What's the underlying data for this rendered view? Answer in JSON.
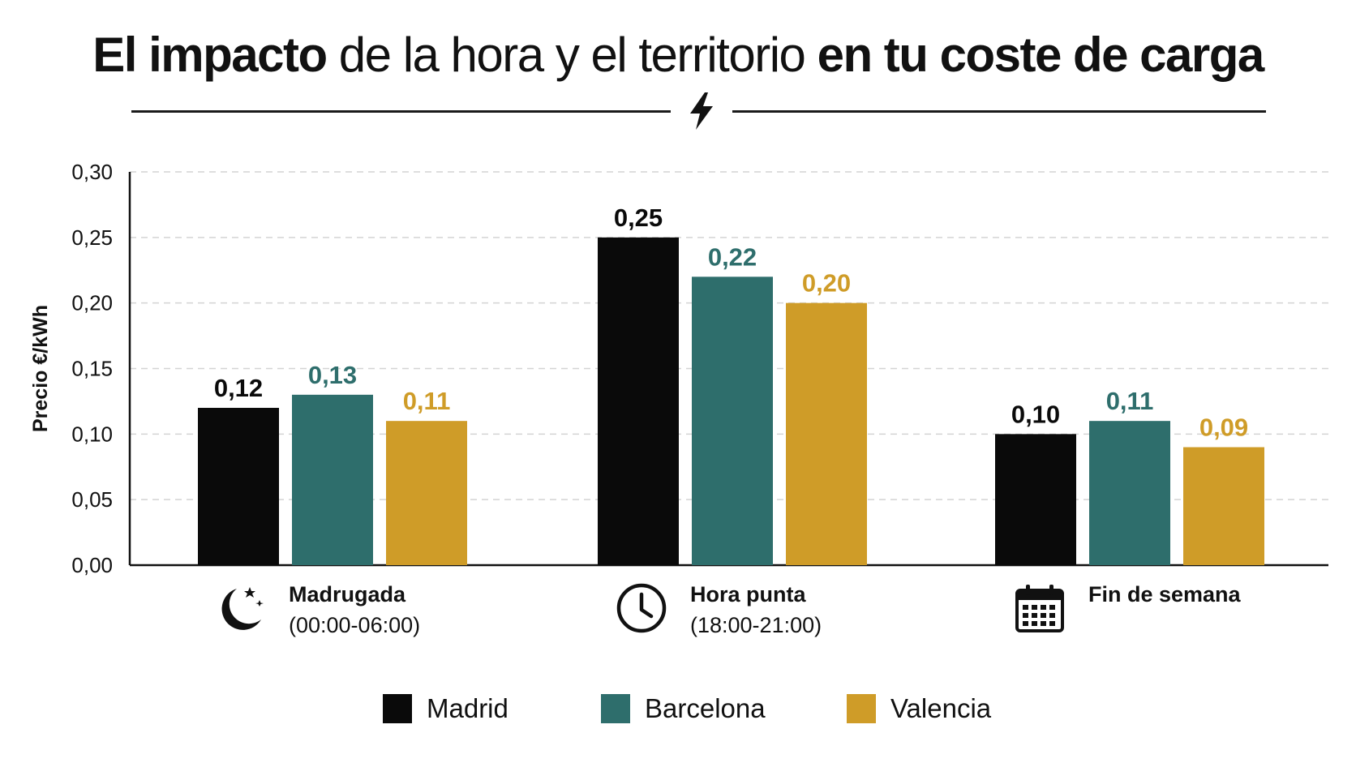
{
  "header": {
    "title_part1": "El impacto",
    "title_part2": " de la hora y el territorio ",
    "title_part3": "en tu coste de carga"
  },
  "colors": {
    "madrid": "#0a0a0a",
    "barcelona": "#2e6e6c",
    "valencia": "#cf9c28",
    "grid": "#d4d4d4",
    "axis": "#111111"
  },
  "chart_data": {
    "type": "bar",
    "ylabel": "Precio €/kWh",
    "xlabel": "",
    "ylim": [
      0,
      0.3
    ],
    "yticks": [
      "0,00",
      "0,05",
      "0,10",
      "0,15",
      "0,20",
      "0,25",
      "0,30"
    ],
    "grid": true,
    "legend_position": "bottom",
    "categories": [
      "Madrugada",
      "Hora punta",
      "Fin de semana"
    ],
    "category_sublabels": [
      "(00:00-06:00)",
      "(18:00-21:00)",
      ""
    ],
    "category_icons": [
      "moon-icon",
      "clock-icon",
      "calendar-icon"
    ],
    "series": [
      {
        "name": "Madrid",
        "color": "#0a0a0a",
        "values": [
          0.12,
          0.25,
          0.1
        ],
        "labels": [
          "0,12",
          "0,25",
          "0,10"
        ]
      },
      {
        "name": "Barcelona",
        "color": "#2e6e6c",
        "values": [
          0.13,
          0.22,
          0.11
        ],
        "labels": [
          "0,13",
          "0,22",
          "0,11"
        ]
      },
      {
        "name": "Valencia",
        "color": "#cf9c28",
        "values": [
          0.11,
          0.2,
          0.09
        ],
        "labels": [
          "0,11",
          "0,20",
          "0,09"
        ]
      }
    ]
  }
}
